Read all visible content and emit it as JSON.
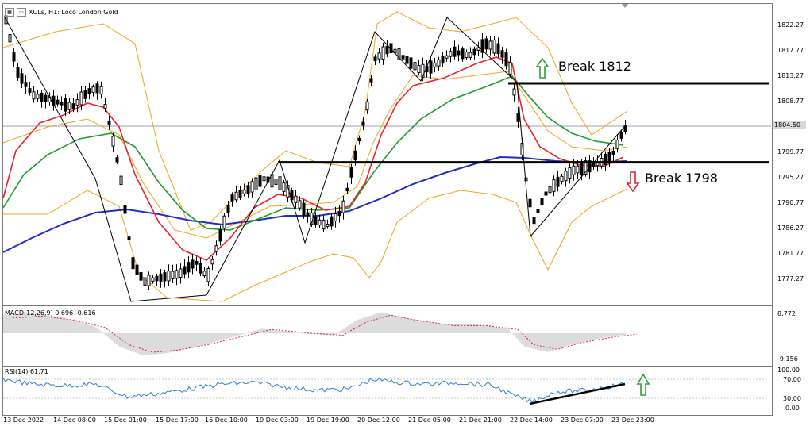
{
  "header": {
    "symbol_text": "XULs, H1: Loco London Gold",
    "icons": [
      "chart-grid-icon",
      "window-icon"
    ]
  },
  "price_scale": {
    "ticks": [
      "1822.27",
      "1817.77",
      "1813.27",
      "1808.77",
      "1804.50",
      "1799.77",
      "1795.27",
      "1790.77",
      "1786.27",
      "1781.77",
      "1777.27"
    ],
    "current_price": "1804.50"
  },
  "annotations": {
    "break_up": "Break 1812",
    "break_down": "Break 1798",
    "up_arrow_color": "#2e9e3a",
    "down_arrow_color": "#d7263d"
  },
  "levels": {
    "resistance": 1812,
    "support": 1798
  },
  "macd": {
    "title": "MACD(12,26,9) 0.696 -0.616",
    "scale_top": "8.772",
    "scale_bottom": "-9.156"
  },
  "rsi": {
    "title": "RSI(14) 61.71",
    "scale": [
      "100.00",
      "70.00",
      "30.00",
      "0.00"
    ]
  },
  "time_axis": [
    "13 Dec 2022",
    "14 Dec 08:00",
    "15 Dec 01:00",
    "15 Dec 17:00",
    "16 Dec 10:00",
    "19 Dec 03:00",
    "19 Dec 19:00",
    "20 Dec 12:00",
    "21 Dec 05:00",
    "21 Dec 21:00",
    "22 Dec 14:00",
    "23 Dec 07:00",
    "23 Dec 23:00"
  ],
  "colors": {
    "ema_fast": "#e8232a",
    "ema_mid": "#1e9b2a",
    "ema_slow": "#1f2fc4",
    "bollinger": "#f2a51a",
    "macd_signal": "#d7263d",
    "rsi_line": "#2f7fd6",
    "candle": "#000000"
  }
}
